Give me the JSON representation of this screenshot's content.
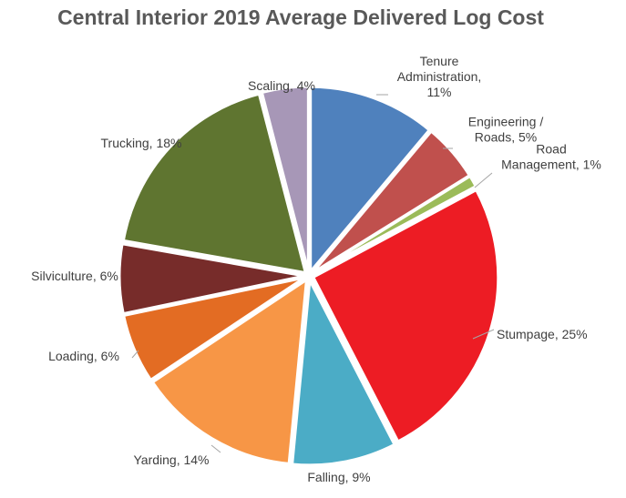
{
  "chart_data": {
    "type": "pie",
    "title": "Central Interior 2019 Average Delivered Log Cost",
    "unit": "%",
    "legend": "none",
    "slices": [
      {
        "name": "Tenure Administration",
        "value": 11,
        "color": "#4f81bd",
        "label_lines": [
          "Tenure",
          "Administration,",
          "11%"
        ]
      },
      {
        "name": "Engineering / Roads",
        "value": 5,
        "color": "#c0504d",
        "label_lines": [
          "Engineering /",
          "Roads, 5%"
        ]
      },
      {
        "name": "Road Management",
        "value": 1,
        "color": "#9bbb59",
        "label_lines": [
          "Road",
          "Management, 1%"
        ]
      },
      {
        "name": "Stumpage",
        "value": 25,
        "color": "#ed1c24",
        "label_lines": [
          "Stumpage, 25%"
        ]
      },
      {
        "name": "Falling",
        "value": 9,
        "color": "#4bacc6",
        "label_lines": [
          "Falling, 9%"
        ]
      },
      {
        "name": "Yarding",
        "value": 14,
        "color": "#f79646",
        "label_lines": [
          "Yarding, 14%"
        ]
      },
      {
        "name": "Loading",
        "value": 6,
        "color": "#e36c23",
        "label_lines": [
          "Loading, 6%"
        ]
      },
      {
        "name": "Silviculture",
        "value": 6,
        "color": "#772c2a",
        "label_lines": [
          "Silviculture, 6%"
        ]
      },
      {
        "name": "Trucking",
        "value": 18,
        "color": "#5f7530",
        "label_lines": [
          "Trucking, 18%"
        ]
      },
      {
        "name": "Scaling",
        "value": 4,
        "color": "#a797b7",
        "label_lines": [
          "Scaling, 4%"
        ]
      }
    ]
  }
}
